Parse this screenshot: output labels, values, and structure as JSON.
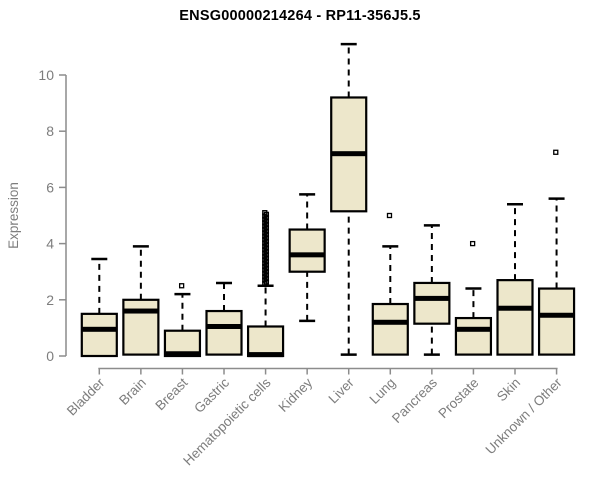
{
  "chart_data": {
    "type": "boxplot",
    "title": "ENSG00000214264 - RP11-356J5.5",
    "xlabel": "",
    "ylabel": "Expression",
    "ylim": [
      0,
      11.2
    ],
    "yticks": [
      0,
      2,
      4,
      6,
      8,
      10
    ],
    "grid": false,
    "legend": "none",
    "categories": [
      "Bladder",
      "Brain",
      "Breast",
      "Gastric",
      "Hematopoietic cells",
      "Kidney",
      "Liver",
      "Lung",
      "Pancreas",
      "Prostate",
      "Skin",
      "Unknown / Other"
    ],
    "series": [
      {
        "name": "Bladder",
        "low": 0,
        "q1": 0,
        "median": 0.95,
        "q3": 1.5,
        "high": 3.45,
        "outliers": []
      },
      {
        "name": "Brain",
        "low": 0.05,
        "q1": 0.05,
        "median": 1.6,
        "q3": 2.0,
        "high": 3.9,
        "outliers": []
      },
      {
        "name": "Breast",
        "low": 0,
        "q1": 0,
        "median": 0.08,
        "q3": 0.9,
        "high": 2.2,
        "outliers": [
          2.5
        ]
      },
      {
        "name": "Gastric",
        "low": 0.05,
        "q1": 0.05,
        "median": 1.05,
        "q3": 1.6,
        "high": 2.6,
        "outliers": []
      },
      {
        "name": "Hematopoietic cells",
        "low": 0,
        "q1": 0,
        "median": 0.05,
        "q3": 1.05,
        "high": 2.5,
        "outliers": [
          2.58,
          2.64,
          2.7,
          2.76,
          2.82,
          2.88,
          2.94,
          3.0,
          3.06,
          3.12,
          3.18,
          3.24,
          3.3,
          3.36,
          3.42,
          3.48,
          3.54,
          3.6,
          3.66,
          3.72,
          3.78,
          3.84,
          3.9,
          3.96,
          4.02,
          4.08,
          4.14,
          4.2,
          4.26,
          4.32,
          4.38,
          4.44,
          4.5,
          4.56,
          4.62,
          4.68,
          4.74,
          4.8,
          4.86,
          4.92,
          4.98,
          5.04,
          5.1
        ]
      },
      {
        "name": "Kidney",
        "low": 1.25,
        "q1": 3.0,
        "median": 3.6,
        "q3": 4.5,
        "high": 5.75,
        "outliers": []
      },
      {
        "name": "Liver",
        "low": 0.05,
        "q1": 5.15,
        "median": 7.2,
        "q3": 9.2,
        "high": 11.1,
        "outliers": []
      },
      {
        "name": "Lung",
        "low": 0.05,
        "q1": 0.05,
        "median": 1.2,
        "q3": 1.85,
        "high": 3.9,
        "outliers": [
          5.0
        ]
      },
      {
        "name": "Pancreas",
        "low": 0.05,
        "q1": 1.15,
        "median": 2.05,
        "q3": 2.6,
        "high": 4.65,
        "outliers": []
      },
      {
        "name": "Prostate",
        "low": 0.05,
        "q1": 0.05,
        "median": 0.95,
        "q3": 1.35,
        "high": 2.4,
        "outliers": [
          4.0
        ]
      },
      {
        "name": "Skin",
        "low": 0.05,
        "q1": 0.05,
        "median": 1.7,
        "q3": 2.7,
        "high": 5.4,
        "outliers": []
      },
      {
        "name": "Unknown / Other",
        "low": 0.05,
        "q1": 0.05,
        "median": 1.45,
        "q3": 2.4,
        "high": 5.6,
        "outliers": [
          7.25
        ]
      }
    ]
  },
  "styles": {
    "box_fill": "#EDE7CB",
    "box_stroke": "#000000",
    "median_color": "#000000",
    "axis_text": "#7D7D7D",
    "axis_line": "#8C8C8C",
    "title_color": "#000000",
    "background": "#FFFFFF"
  }
}
